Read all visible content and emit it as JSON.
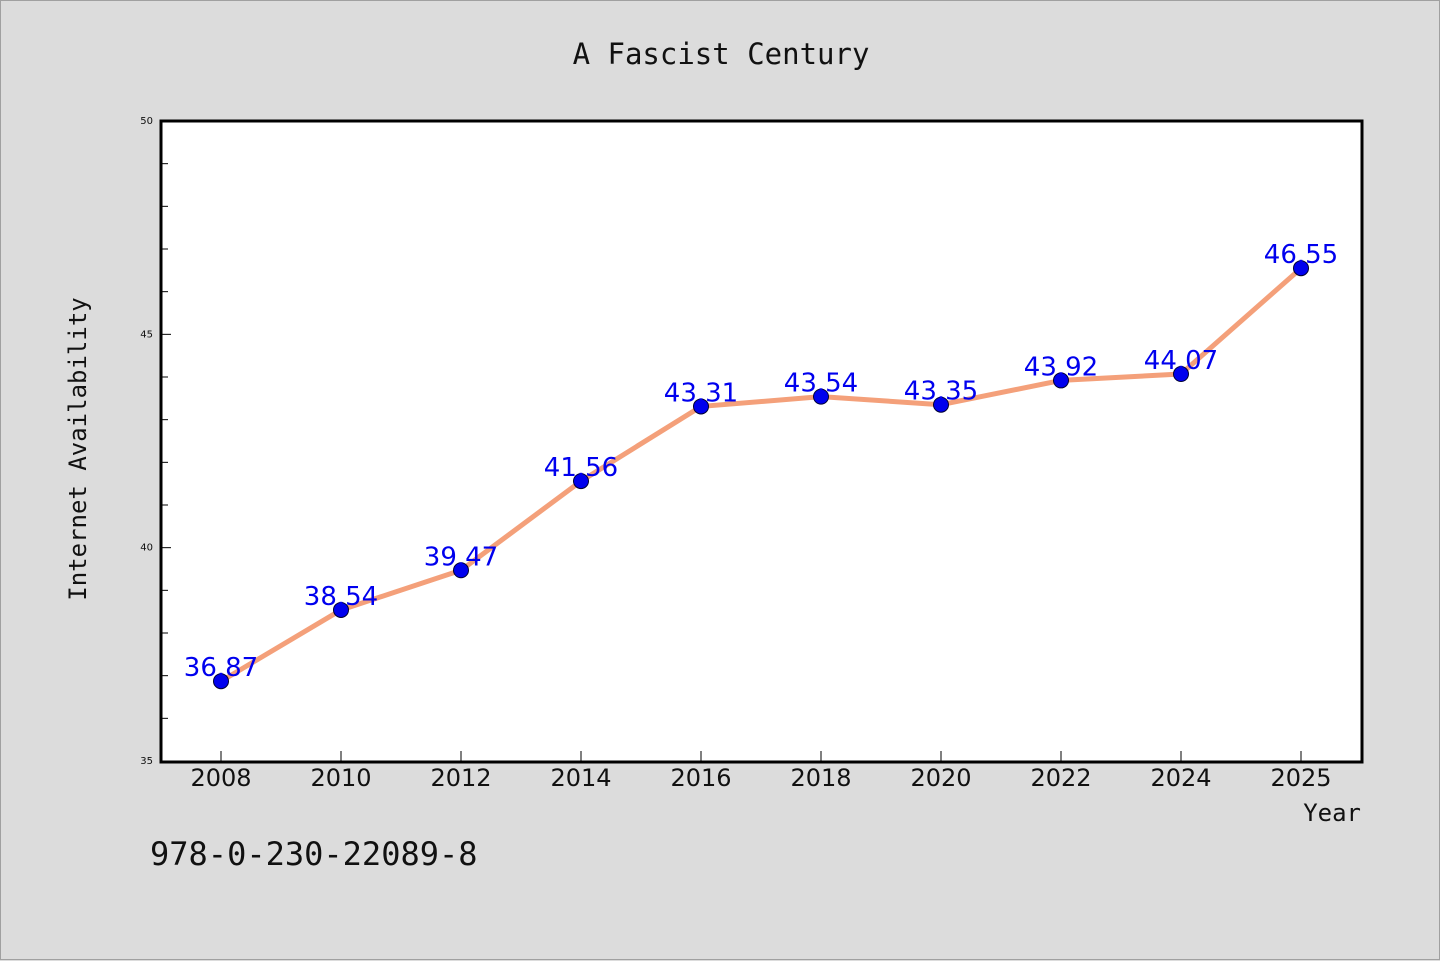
{
  "chart_data": {
    "type": "line",
    "title": "A Fascist Century",
    "xlabel": "Year",
    "ylabel": "Internet Availability",
    "categories": [
      "2008",
      "2010",
      "2012",
      "2014",
      "2016",
      "2018",
      "2020",
      "2022",
      "2024",
      "2025"
    ],
    "series": [
      {
        "values": [
          36.87,
          38.54,
          39.47,
          41.56,
          43.31,
          43.54,
          43.35,
          43.92,
          44.07,
          46.55
        ],
        "labels": [
          "36.87",
          "38.54",
          "39.47",
          "41.56",
          "43.31",
          "43.54",
          "43.35",
          "43.92",
          "44.07",
          "46.55"
        ],
        "line_color": "#f4a07a",
        "marker_color": "#0000ee",
        "label_color": "#0000ee"
      }
    ],
    "ylim": [
      35,
      50
    ],
    "yticks": [
      "35",
      "40",
      "45",
      "50"
    ],
    "grid": false,
    "legend": "none"
  },
  "footer": {
    "isbn": "978-0-230-22089-8"
  },
  "colors": {
    "background": "#dcdcdc",
    "plot_background": "#ffffff"
  }
}
